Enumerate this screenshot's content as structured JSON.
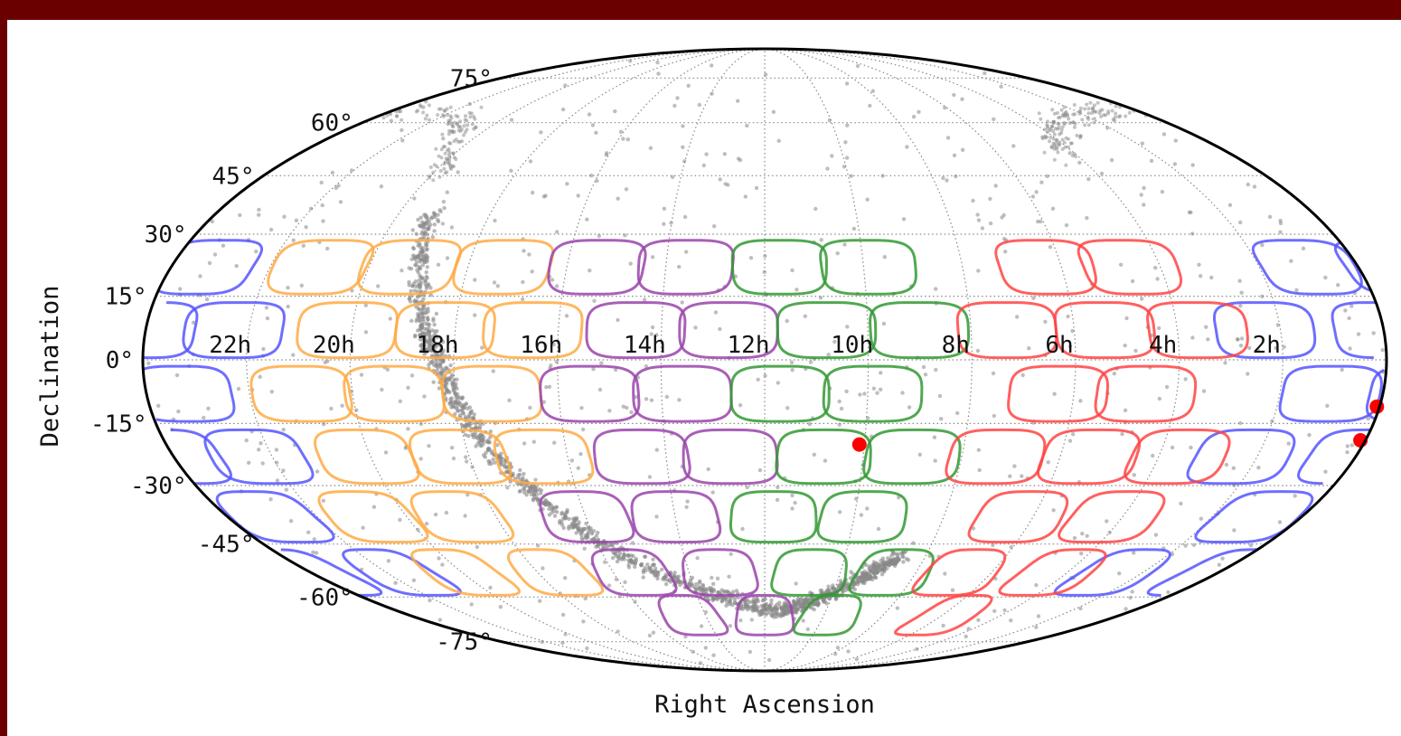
{
  "chart_data": {
    "type": "scatter",
    "projection": "mollweide",
    "xlabel": "Right Ascension",
    "ylabel": "Declination",
    "x_tick_labels": [
      "22h",
      "20h",
      "18h",
      "16h",
      "14h",
      "12h",
      "10h",
      "8h",
      "6h",
      "4h",
      "2h"
    ],
    "y_tick_labels": [
      "75°",
      "60°",
      "45°",
      "30°",
      "15°",
      "0°",
      "-15°",
      "-30°",
      "-45°",
      "-60°",
      "-75°"
    ],
    "y_ticks_deg": [
      75,
      60,
      45,
      30,
      15,
      0,
      -15,
      -30,
      -45,
      -60,
      -75
    ],
    "x_ticks_hours": [
      22,
      20,
      18,
      16,
      14,
      12,
      10,
      8,
      6,
      4,
      2
    ],
    "grid": true,
    "fields": {
      "blue": [
        {
          "ra_h": 1.0,
          "dec": 22
        },
        {
          "ra_h": 23.3,
          "dec": 22
        },
        {
          "ra_h": 0.0,
          "dec": 7
        },
        {
          "ra_h": 2.3,
          "dec": 7
        },
        {
          "ra_h": 22.3,
          "dec": 7
        },
        {
          "ra_h": 1.0,
          "dec": -8
        },
        {
          "ra_h": 23.3,
          "dec": -8
        },
        {
          "ra_h": 0.0,
          "dec": -23
        },
        {
          "ra_h": 2.3,
          "dec": -23
        },
        {
          "ra_h": 22.3,
          "dec": -23
        },
        {
          "ra_h": 1.0,
          "dec": -38
        },
        {
          "ra_h": 23.0,
          "dec": -38
        },
        {
          "ra_h": 0.0,
          "dec": -53
        },
        {
          "ra_h": 2.7,
          "dec": -53
        },
        {
          "ra_h": 21.7,
          "dec": -53
        }
      ],
      "orange": [
        {
          "ra_h": 21.0,
          "dec": 22
        },
        {
          "ra_h": 19.2,
          "dec": 22
        },
        {
          "ra_h": 17.3,
          "dec": 22
        },
        {
          "ra_h": 20.1,
          "dec": 7
        },
        {
          "ra_h": 18.2,
          "dec": 7
        },
        {
          "ra_h": 16.5,
          "dec": 7
        },
        {
          "ra_h": 21.0,
          "dec": -8
        },
        {
          "ra_h": 19.2,
          "dec": -8
        },
        {
          "ra_h": 17.3,
          "dec": -8
        },
        {
          "ra_h": 20.1,
          "dec": -23
        },
        {
          "ra_h": 18.2,
          "dec": -23
        },
        {
          "ra_h": 16.5,
          "dec": -23
        },
        {
          "ra_h": 20.8,
          "dec": -38
        },
        {
          "ra_h": 18.8,
          "dec": -38
        },
        {
          "ra_h": 20.0,
          "dec": -53
        },
        {
          "ra_h": 17.6,
          "dec": -53
        }
      ],
      "purple": [
        {
          "ra_h": 15.4,
          "dec": 22
        },
        {
          "ra_h": 13.6,
          "dec": 22
        },
        {
          "ra_h": 14.5,
          "dec": 7
        },
        {
          "ra_h": 12.7,
          "dec": 7
        },
        {
          "ra_h": 15.4,
          "dec": -8
        },
        {
          "ra_h": 13.6,
          "dec": -8
        },
        {
          "ra_h": 14.5,
          "dec": -23
        },
        {
          "ra_h": 12.7,
          "dec": -23
        },
        {
          "ra_h": 16.0,
          "dec": -38
        },
        {
          "ra_h": 14.0,
          "dec": -38
        },
        {
          "ra_h": 15.5,
          "dec": -53
        },
        {
          "ra_h": 13.2,
          "dec": -53
        },
        {
          "ra_h": 14.5,
          "dec": -66
        },
        {
          "ra_h": 12.0,
          "dec": -66
        }
      ],
      "green": [
        {
          "ra_h": 11.7,
          "dec": 22
        },
        {
          "ra_h": 9.9,
          "dec": 22
        },
        {
          "ra_h": 10.8,
          "dec": 7
        },
        {
          "ra_h": 9.0,
          "dec": 7
        },
        {
          "ra_h": 11.7,
          "dec": -8
        },
        {
          "ra_h": 9.9,
          "dec": -8
        },
        {
          "ra_h": 10.8,
          "dec": -23
        },
        {
          "ra_h": 9.0,
          "dec": -23
        },
        {
          "ra_h": 11.8,
          "dec": -38
        },
        {
          "ra_h": 9.8,
          "dec": -38
        },
        {
          "ra_h": 10.8,
          "dec": -53
        },
        {
          "ra_h": 8.6,
          "dec": -53
        },
        {
          "ra_h": 9.8,
          "dec": -66
        }
      ],
      "red": [
        {
          "ra_h": 6.3,
          "dec": 22
        },
        {
          "ra_h": 4.6,
          "dec": 22
        },
        {
          "ra_h": 7.3,
          "dec": 7
        },
        {
          "ra_h": 5.4,
          "dec": 7
        },
        {
          "ra_h": 3.6,
          "dec": 7
        },
        {
          "ra_h": 6.3,
          "dec": -8
        },
        {
          "ra_h": 4.6,
          "dec": -8
        },
        {
          "ra_h": 7.3,
          "dec": -23
        },
        {
          "ra_h": 5.4,
          "dec": -23
        },
        {
          "ra_h": 3.6,
          "dec": -23
        },
        {
          "ra_h": 6.3,
          "dec": -38
        },
        {
          "ra_h": 4.2,
          "dec": -38
        },
        {
          "ra_h": 6.8,
          "dec": -53
        },
        {
          "ra_h": 4.3,
          "dec": -53
        },
        {
          "ra_h": 5.8,
          "dec": -66
        }
      ]
    },
    "field_colors": {
      "blue": "#5555ff",
      "orange": "#ffaa44",
      "purple": "#9944aa",
      "green": "#339933",
      "red": "#ff4444"
    },
    "highlight_points": [
      {
        "ra_h": 10.1,
        "dec": -20
      },
      {
        "ra_h": 0.05,
        "dec": -11
      },
      {
        "ra_h": 0.1,
        "dec": -19
      }
    ],
    "highlight_color": "#ff0000",
    "background_points_color": "#888888"
  }
}
